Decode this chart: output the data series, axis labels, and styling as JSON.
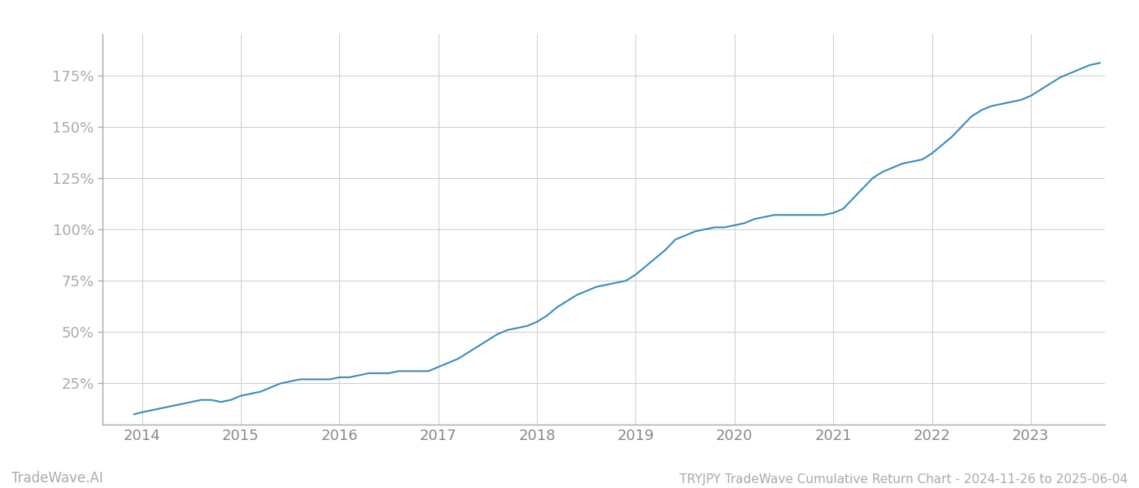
{
  "title": "TRYJPY TradeWave Cumulative Return Chart - 2024-11-26 to 2025-06-04",
  "watermark": "TradeWave.AI",
  "line_color": "#3a8bbf",
  "background_color": "#ffffff",
  "grid_color": "#cccccc",
  "x_years": [
    2014,
    2015,
    2016,
    2017,
    2018,
    2019,
    2020,
    2021,
    2022,
    2023
  ],
  "y_ticks": [
    25,
    50,
    75,
    100,
    125,
    150,
    175
  ],
  "ylim": [
    5,
    195
  ],
  "xlim": [
    2013.6,
    2023.75
  ],
  "data_x": [
    2013.92,
    2014.0,
    2014.1,
    2014.2,
    2014.3,
    2014.4,
    2014.5,
    2014.6,
    2014.7,
    2014.8,
    2014.9,
    2015.0,
    2015.1,
    2015.2,
    2015.3,
    2015.4,
    2015.5,
    2015.6,
    2015.7,
    2015.8,
    2015.9,
    2016.0,
    2016.1,
    2016.2,
    2016.3,
    2016.4,
    2016.5,
    2016.6,
    2016.7,
    2016.8,
    2016.9,
    2017.0,
    2017.1,
    2017.2,
    2017.3,
    2017.4,
    2017.5,
    2017.6,
    2017.7,
    2017.8,
    2017.9,
    2018.0,
    2018.1,
    2018.2,
    2018.3,
    2018.4,
    2018.5,
    2018.6,
    2018.7,
    2018.8,
    2018.9,
    2019.0,
    2019.1,
    2019.2,
    2019.3,
    2019.4,
    2019.5,
    2019.6,
    2019.7,
    2019.8,
    2019.9,
    2020.0,
    2020.1,
    2020.2,
    2020.3,
    2020.4,
    2020.5,
    2020.6,
    2020.7,
    2020.8,
    2020.9,
    2021.0,
    2021.1,
    2021.2,
    2021.3,
    2021.4,
    2021.5,
    2021.6,
    2021.7,
    2021.8,
    2021.9,
    2022.0,
    2022.1,
    2022.2,
    2022.3,
    2022.4,
    2022.5,
    2022.6,
    2022.7,
    2022.8,
    2022.9,
    2023.0,
    2023.1,
    2023.2,
    2023.3,
    2023.4,
    2023.5,
    2023.6,
    2023.7
  ],
  "data_y": [
    10,
    11,
    12,
    13,
    14,
    15,
    16,
    17,
    17,
    16,
    17,
    19,
    20,
    21,
    23,
    25,
    26,
    27,
    27,
    27,
    27,
    28,
    28,
    29,
    30,
    30,
    30,
    31,
    31,
    31,
    31,
    33,
    35,
    37,
    40,
    43,
    46,
    49,
    51,
    52,
    53,
    55,
    58,
    62,
    65,
    68,
    70,
    72,
    73,
    74,
    75,
    78,
    82,
    86,
    90,
    95,
    97,
    99,
    100,
    101,
    101,
    102,
    103,
    105,
    106,
    107,
    107,
    107,
    107,
    107,
    107,
    108,
    110,
    115,
    120,
    125,
    128,
    130,
    132,
    133,
    134,
    137,
    141,
    145,
    150,
    155,
    158,
    160,
    161,
    162,
    163,
    165,
    168,
    171,
    174,
    176,
    178,
    180,
    181
  ]
}
